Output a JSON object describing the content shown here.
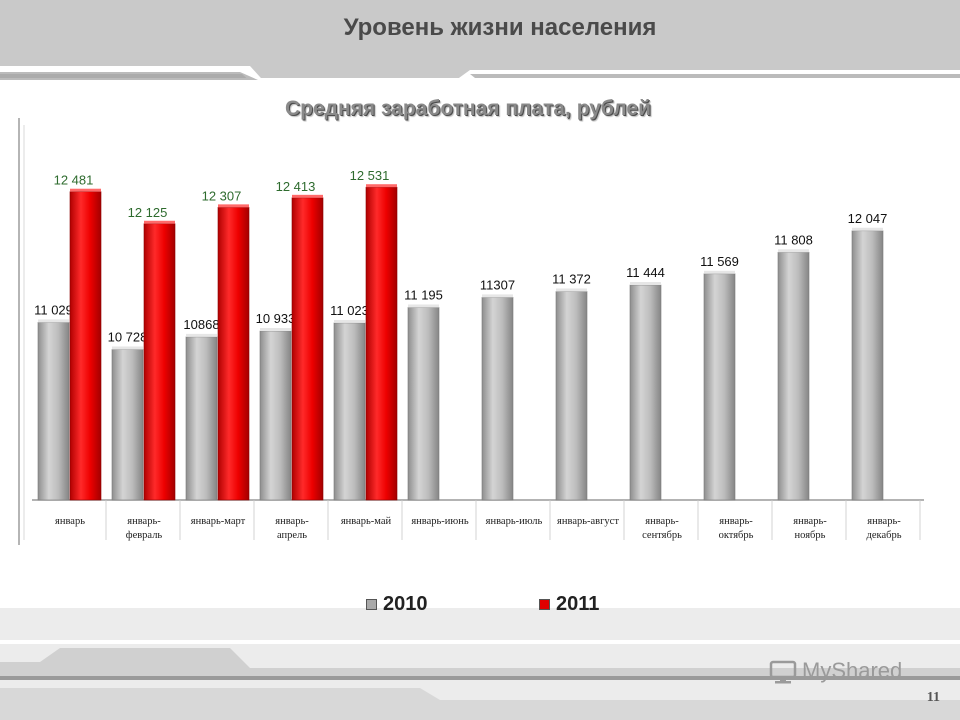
{
  "header": {
    "title": "Уровень жизни населения"
  },
  "footer": {
    "page_number": "11",
    "watermark": "MyShared"
  },
  "colors": {
    "series_2010": "#a9a9a9",
    "series_2011": "#e10000",
    "label_2011": "#2e6b2e"
  },
  "chart_data": {
    "type": "bar",
    "title": "Средняя заработная плата, рублей",
    "xlabel": "",
    "ylabel": "",
    "ylim": [
      0,
      13000
    ],
    "grid": false,
    "legend": "bottom",
    "categories": [
      "январь",
      "январь-февраль",
      "январь-март",
      "январь-апрель",
      "январь-май",
      "январь-июнь",
      "январь-июль",
      "январь-август",
      "январь-сентябрь",
      "январь-октябрь",
      "январь-ноябрь",
      "январь-декабрь"
    ],
    "category_lines": [
      [
        "январь"
      ],
      [
        "январь-",
        "февраль"
      ],
      [
        "январь-март"
      ],
      [
        "январь-",
        "апрель"
      ],
      [
        "январь-май"
      ],
      [
        "январь-июнь"
      ],
      [
        "январь-июль"
      ],
      [
        "январь-август"
      ],
      [
        "январь-",
        "сентябрь"
      ],
      [
        "январь-",
        "октябрь"
      ],
      [
        "январь-",
        "ноябрь"
      ],
      [
        "январь-",
        "декабрь"
      ]
    ],
    "series": [
      {
        "name": "2010",
        "values": [
          11029,
          10728,
          10868,
          10933,
          11023,
          11195,
          11307,
          11372,
          11444,
          11569,
          11808,
          12047
        ],
        "labels": [
          "11 029",
          "10 728",
          "10868",
          "10 933",
          "11 023",
          "11 195",
          "11307",
          "11 372",
          "11 444",
          "11 569",
          "11 808",
          "12 047"
        ]
      },
      {
        "name": "2011",
        "values": [
          12481,
          12125,
          12307,
          12413,
          12531,
          null,
          null,
          null,
          null,
          null,
          null,
          null
        ],
        "labels": [
          "12 481",
          "12 125",
          "12 307",
          "12 413",
          "12 531",
          "",
          "",
          "",
          "",
          "",
          "",
          ""
        ]
      }
    ]
  }
}
